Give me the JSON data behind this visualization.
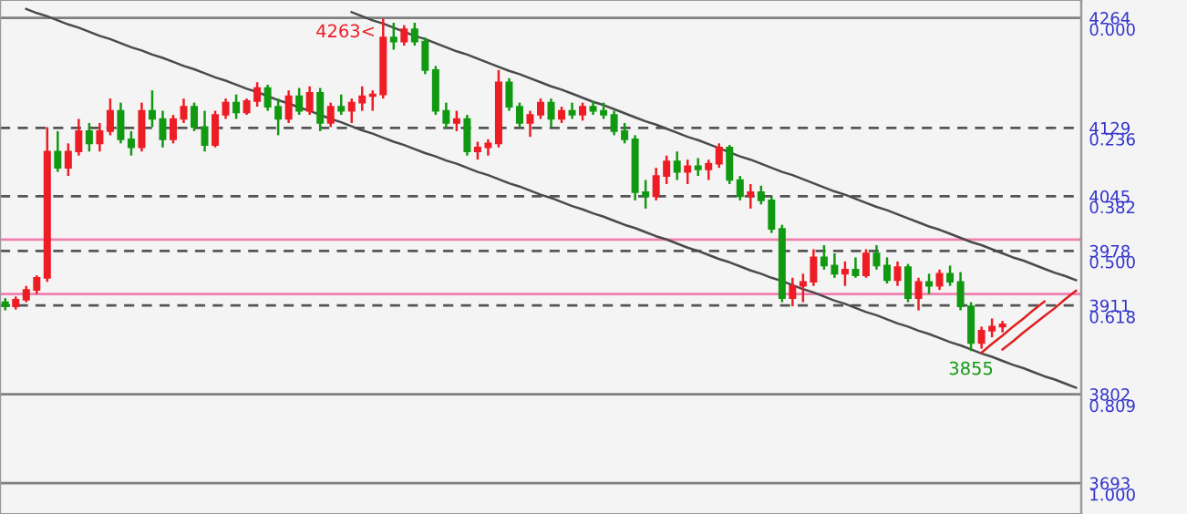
{
  "chart_data": {
    "type": "candlestick",
    "categories": [
      null,
      null,
      null,
      null,
      null,
      null,
      null,
      null,
      null,
      null,
      null,
      null,
      null,
      null,
      null,
      null,
      null,
      null,
      null,
      null,
      null,
      null,
      null,
      null,
      null,
      null,
      null,
      null,
      null,
      null,
      null,
      null,
      null,
      null,
      null,
      null,
      null,
      null,
      null,
      null,
      null,
      null,
      null,
      null,
      null,
      null,
      null,
      null,
      null,
      null,
      null,
      null,
      null,
      null,
      null,
      null,
      null,
      null,
      null,
      null,
      null,
      null,
      null,
      null,
      null,
      null,
      null,
      null,
      null,
      null,
      null,
      null,
      null,
      null,
      null,
      null,
      null,
      null,
      null,
      null,
      null,
      null,
      null,
      null,
      null,
      null,
      null,
      null,
      null,
      null,
      null,
      null,
      null,
      null,
      null,
      null,
      null,
      null,
      null,
      null,
      null,
      null,
      null
    ],
    "ohlc": [
      [
        3915,
        3920,
        3905,
        3910
      ],
      [
        3910,
        3922,
        3906,
        3918
      ],
      [
        3918,
        3935,
        3915,
        3930
      ],
      [
        3930,
        3948,
        3925,
        3945
      ],
      [
        3945,
        4130,
        3940,
        4100
      ],
      [
        4100,
        4125,
        4075,
        4080
      ],
      [
        4080,
        4110,
        4070,
        4100
      ],
      [
        4100,
        4140,
        4095,
        4125
      ],
      [
        4125,
        4135,
        4100,
        4110
      ],
      [
        4110,
        4135,
        4100,
        4125
      ],
      [
        4125,
        4165,
        4120,
        4150
      ],
      [
        4150,
        4160,
        4110,
        4115
      ],
      [
        4115,
        4125,
        4095,
        4105
      ],
      [
        4105,
        4160,
        4100,
        4150
      ],
      [
        4150,
        4175,
        4130,
        4140
      ],
      [
        4140,
        4150,
        4105,
        4115
      ],
      [
        4115,
        4145,
        4110,
        4140
      ],
      [
        4140,
        4165,
        4135,
        4155
      ],
      [
        4155,
        4160,
        4125,
        4130
      ],
      [
        4130,
        4150,
        4100,
        4108
      ],
      [
        4108,
        4150,
        4105,
        4145
      ],
      [
        4145,
        4165,
        4140,
        4160
      ],
      [
        4160,
        4170,
        4140,
        4148
      ],
      [
        4148,
        4165,
        4145,
        4162
      ],
      [
        4162,
        4185,
        4155,
        4178
      ],
      [
        4178,
        4182,
        4150,
        4155
      ],
      [
        4155,
        4165,
        4120,
        4140
      ],
      [
        4140,
        4175,
        4135,
        4168
      ],
      [
        4168,
        4178,
        4145,
        4150
      ],
      [
        4150,
        4180,
        4145,
        4172
      ],
      [
        4172,
        4178,
        4125,
        4135
      ],
      [
        4135,
        4160,
        4130,
        4155
      ],
      [
        4155,
        4170,
        4145,
        4150
      ],
      [
        4150,
        4165,
        4135,
        4160
      ],
      [
        4160,
        4180,
        4150,
        4168
      ],
      [
        4168,
        4175,
        4150,
        4170
      ],
      [
        4170,
        4263,
        4165,
        4240
      ],
      [
        4240,
        4258,
        4225,
        4235
      ],
      [
        4235,
        4255,
        4230,
        4250
      ],
      [
        4250,
        4258,
        4230,
        4235
      ],
      [
        4235,
        4240,
        4195,
        4200
      ],
      [
        4200,
        4205,
        4145,
        4150
      ],
      [
        4150,
        4160,
        4128,
        4135
      ],
      [
        4135,
        4150,
        4125,
        4140
      ],
      [
        4140,
        4145,
        4095,
        4100
      ],
      [
        4100,
        4112,
        4090,
        4105
      ],
      [
        4105,
        4115,
        4095,
        4110
      ],
      [
        4110,
        4200,
        4105,
        4185
      ],
      [
        4185,
        4190,
        4150,
        4155
      ],
      [
        4155,
        4160,
        4130,
        4135
      ],
      [
        4135,
        4150,
        4118,
        4145
      ],
      [
        4145,
        4165,
        4140,
        4160
      ],
      [
        4160,
        4165,
        4130,
        4140
      ],
      [
        4140,
        4155,
        4135,
        4150
      ],
      [
        4150,
        4160,
        4140,
        4145
      ],
      [
        4145,
        4160,
        4138,
        4155
      ],
      [
        4155,
        4162,
        4145,
        4150
      ],
      [
        4150,
        4160,
        4140,
        4145
      ],
      [
        4145,
        4150,
        4120,
        4125
      ],
      [
        4125,
        4135,
        4110,
        4115
      ],
      [
        4115,
        4120,
        4040,
        4050
      ],
      [
        4050,
        4065,
        4030,
        4045
      ],
      [
        4045,
        4080,
        4040,
        4070
      ],
      [
        4070,
        4095,
        4060,
        4088
      ],
      [
        4088,
        4100,
        4065,
        4075
      ],
      [
        4075,
        4090,
        4060,
        4082
      ],
      [
        4082,
        4092,
        4070,
        4078
      ],
      [
        4078,
        4090,
        4065,
        4085
      ],
      [
        4085,
        4110,
        4080,
        4105
      ],
      [
        4105,
        4108,
        4060,
        4065
      ],
      [
        4065,
        4070,
        4040,
        4045
      ],
      [
        4045,
        4060,
        4030,
        4050
      ],
      [
        4050,
        4058,
        4035,
        4040
      ],
      [
        4040,
        4045,
        4000,
        4005
      ],
      [
        4005,
        4010,
        3915,
        3920
      ],
      [
        3920,
        3945,
        3910,
        3935
      ],
      [
        3935,
        3950,
        3915,
        3940
      ],
      [
        3940,
        3980,
        3935,
        3970
      ],
      [
        3970,
        3985,
        3955,
        3960
      ],
      [
        3960,
        3975,
        3945,
        3950
      ],
      [
        3950,
        3965,
        3935,
        3955
      ],
      [
        3955,
        3970,
        3945,
        3948
      ],
      [
        3948,
        3980,
        3945,
        3975
      ],
      [
        3975,
        3985,
        3955,
        3960
      ],
      [
        3960,
        3970,
        3938,
        3942
      ],
      [
        3942,
        3965,
        3935,
        3958
      ],
      [
        3958,
        3962,
        3915,
        3920
      ],
      [
        3920,
        3945,
        3905,
        3940
      ],
      [
        3940,
        3950,
        3925,
        3935
      ],
      [
        3935,
        3955,
        3930,
        3950
      ],
      [
        3950,
        3960,
        3935,
        3940
      ],
      [
        3940,
        3952,
        3905,
        3910
      ],
      [
        3910,
        3915,
        3855,
        3865
      ],
      [
        3865,
        3885,
        3858,
        3880
      ],
      [
        3880,
        3895,
        3872,
        3885
      ],
      [
        3885,
        3892,
        3878,
        3888
      ],
      null,
      null,
      null,
      null,
      null,
      null,
      null
    ],
    "colors": [
      "#119911",
      "#ee1c25",
      "#ee1c25",
      "#ee1c25",
      "#ee1c25",
      "#119911",
      "#ee1c25",
      "#ee1c25",
      "#119911",
      "#ee1c25",
      "#ee1c25",
      "#119911",
      "#119911",
      "#ee1c25",
      "#119911",
      "#119911",
      "#ee1c25",
      "#ee1c25",
      "#119911",
      "#119911",
      "#ee1c25",
      "#ee1c25",
      "#119911",
      "#ee1c25",
      "#ee1c25",
      "#119911",
      "#119911",
      "#ee1c25",
      "#119911",
      "#ee1c25",
      "#119911",
      "#ee1c25",
      "#119911",
      "#ee1c25",
      "#ee1c25",
      "#ee1c25",
      "#ee1c25",
      "#119911",
      "#ee1c25",
      "#119911",
      "#119911",
      "#119911",
      "#119911",
      "#ee1c25",
      "#119911",
      "#ee1c25",
      "#ee1c25",
      "#ee1c25",
      "#119911",
      "#119911",
      "#ee1c25",
      "#ee1c25",
      "#119911",
      "#ee1c25",
      "#119911",
      "#ee1c25",
      "#119911",
      "#119911",
      "#119911",
      "#119911",
      "#119911",
      "#119911",
      "#ee1c25",
      "#ee1c25",
      "#119911",
      "#ee1c25",
      "#119911",
      "#ee1c25",
      "#ee1c25",
      "#119911",
      "#119911",
      "#ee1c25",
      "#119911",
      "#119911",
      "#119911",
      "#ee1c25",
      "#ee1c25",
      "#ee1c25",
      "#119911",
      "#119911",
      "#ee1c25",
      "#119911",
      "#ee1c25",
      "#119911",
      "#119911",
      "#ee1c25",
      "#119911",
      "#ee1c25",
      "#119911",
      "#ee1c25",
      "#119911",
      "#119911",
      "#119911",
      "#ee1c25",
      "#ee1c25",
      "#ee1c25",
      null,
      null,
      null,
      null,
      null,
      null,
      null
    ],
    "series": [
      {
        "type": "line",
        "color": "#4a4a4a",
        "values": [
          null,
          null,
          4275,
          4270,
          4266,
          4261,
          4256,
          4252,
          4247,
          4242,
          4238,
          4233,
          4228,
          4224,
          4219,
          4215,
          4210,
          4205,
          4201,
          4196,
          4191,
          4187,
          4182,
          4177,
          4173,
          4168,
          4163,
          4159,
          4154,
          4150,
          4145,
          4140,
          4136,
          4131,
          4126,
          4122,
          4117,
          4112,
          4108,
          4103,
          4098,
          4094,
          4089,
          4085,
          4080,
          4075,
          4071,
          4066,
          4061,
          4057,
          4052,
          4047,
          4043,
          4038,
          4033,
          4029,
          4024,
          4020,
          4015,
          4010,
          4006,
          4001,
          3996,
          3992,
          3987,
          3982,
          3978,
          3973,
          3968,
          3964,
          3959,
          3954,
          3950,
          3945,
          3941,
          3936,
          3931,
          3927,
          3922,
          3917,
          3913,
          3908,
          3903,
          3899,
          3894,
          3889,
          3885,
          3880,
          3876,
          3871,
          3866,
          3862,
          3857,
          3852,
          3848,
          3843,
          3838,
          3834,
          3829,
          3824,
          3820,
          3815,
          3810
        ]
      },
      {
        "type": "line",
        "color": "#4a4a4a",
        "values": [
          null,
          null,
          null,
          null,
          null,
          null,
          null,
          null,
          null,
          null,
          null,
          null,
          null,
          null,
          null,
          null,
          null,
          null,
          null,
          null,
          null,
          null,
          null,
          null,
          null,
          null,
          null,
          null,
          null,
          null,
          null,
          null,
          null,
          4271,
          4266,
          4261,
          4257,
          4252,
          4247,
          4242,
          4238,
          4233,
          4228,
          4223,
          4219,
          4214,
          4209,
          4204,
          4199,
          4195,
          4190,
          4185,
          4180,
          4176,
          4171,
          4166,
          4161,
          4157,
          4152,
          4147,
          4142,
          4137,
          4133,
          4128,
          4123,
          4118,
          4114,
          4109,
          4104,
          4099,
          4094,
          4090,
          4085,
          4080,
          4075,
          4071,
          4066,
          4061,
          4056,
          4051,
          4047,
          4042,
          4037,
          4032,
          4028,
          4023,
          4018,
          4013,
          4008,
          4004,
          3999,
          3994,
          3989,
          3985,
          3980,
          3975,
          3970,
          3966,
          3961,
          3956,
          3951,
          3947,
          3942
        ]
      },
      {
        "type": "line",
        "color": "#e02020",
        "values": [
          null,
          null,
          null,
          null,
          null,
          null,
          null,
          null,
          null,
          null,
          null,
          null,
          null,
          null,
          null,
          null,
          null,
          null,
          null,
          null,
          null,
          null,
          null,
          null,
          null,
          null,
          null,
          null,
          null,
          null,
          null,
          null,
          null,
          null,
          null,
          null,
          null,
          null,
          null,
          null,
          null,
          null,
          null,
          null,
          null,
          null,
          null,
          null,
          null,
          null,
          null,
          null,
          null,
          null,
          null,
          null,
          null,
          null,
          null,
          null,
          null,
          null,
          null,
          null,
          null,
          null,
          null,
          null,
          null,
          null,
          null,
          null,
          null,
          null,
          null,
          null,
          null,
          null,
          null,
          null,
          null,
          null,
          null,
          null,
          null,
          null,
          null,
          null,
          null,
          null,
          null,
          null,
          null,
          3853,
          3864,
          3874,
          3885,
          3895,
          3906,
          3916,
          null,
          null,
          null
        ]
      },
      {
        "type": "line",
        "color": "#e02020",
        "values": [
          null,
          null,
          null,
          null,
          null,
          null,
          null,
          null,
          null,
          null,
          null,
          null,
          null,
          null,
          null,
          null,
          null,
          null,
          null,
          null,
          null,
          null,
          null,
          null,
          null,
          null,
          null,
          null,
          null,
          null,
          null,
          null,
          null,
          null,
          null,
          null,
          null,
          null,
          null,
          null,
          null,
          null,
          null,
          null,
          null,
          null,
          null,
          null,
          null,
          null,
          null,
          null,
          null,
          null,
          null,
          null,
          null,
          null,
          null,
          null,
          null,
          null,
          null,
          null,
          null,
          null,
          null,
          null,
          null,
          null,
          null,
          null,
          null,
          null,
          null,
          null,
          null,
          null,
          null,
          null,
          null,
          null,
          null,
          null,
          null,
          null,
          null,
          null,
          null,
          null,
          null,
          null,
          null,
          null,
          null,
          3857,
          3867,
          3878,
          3888,
          3898,
          3908,
          3919,
          3929
        ]
      }
    ],
    "ylim": [
      3655,
      4286
    ],
    "yticks": [
      4264,
      4129,
      4045,
      3978,
      3911,
      3802,
      3693
    ],
    "y2lim": [
      1.0666,
      -0.0385
    ],
    "y2ticks": [
      {
        "value": 0,
        "label": "0.000"
      },
      {
        "value": 0.236,
        "label": "0.236"
      },
      {
        "value": 0.382,
        "label": "0.382"
      },
      {
        "value": 0.5,
        "label": "0.500"
      },
      {
        "value": 0.618,
        "label": "0.618"
      },
      {
        "value": 0.809,
        "label": "0.809"
      },
      {
        "value": 1,
        "label": "1.000"
      }
    ],
    "tick_labels": "y",
    "ref_lines": [
      {
        "axis": "y",
        "value": 4264,
        "color": "#808080",
        "line_style": "solid"
      },
      {
        "axis": "y",
        "value": 4129,
        "color": "#555555",
        "line_style": "dashed"
      },
      {
        "axis": "y",
        "value": 4045,
        "color": "#555555",
        "line_style": "dashed"
      },
      {
        "axis": "y",
        "value": 3978,
        "color": "#555555",
        "line_style": "dashed"
      },
      {
        "axis": "y",
        "value": 3911,
        "color": "#555555",
        "line_style": "dashed"
      },
      {
        "axis": "y",
        "value": 3802,
        "color": "#808080",
        "line_style": "solid"
      },
      {
        "axis": "y",
        "value": 3693,
        "color": "#808080",
        "line_style": "solid"
      },
      {
        "axis": "y",
        "value": 3992,
        "color": "#f080b0",
        "line_style": "solid"
      },
      {
        "axis": "y",
        "value": 3925,
        "color": "#f080b0",
        "line_style": "solid"
      }
    ],
    "annotations": [
      {
        "text": "4263<",
        "y": 4263
      },
      {
        "text": "3855",
        "y": 3855
      }
    ],
    "grid": false,
    "legend": false
  }
}
